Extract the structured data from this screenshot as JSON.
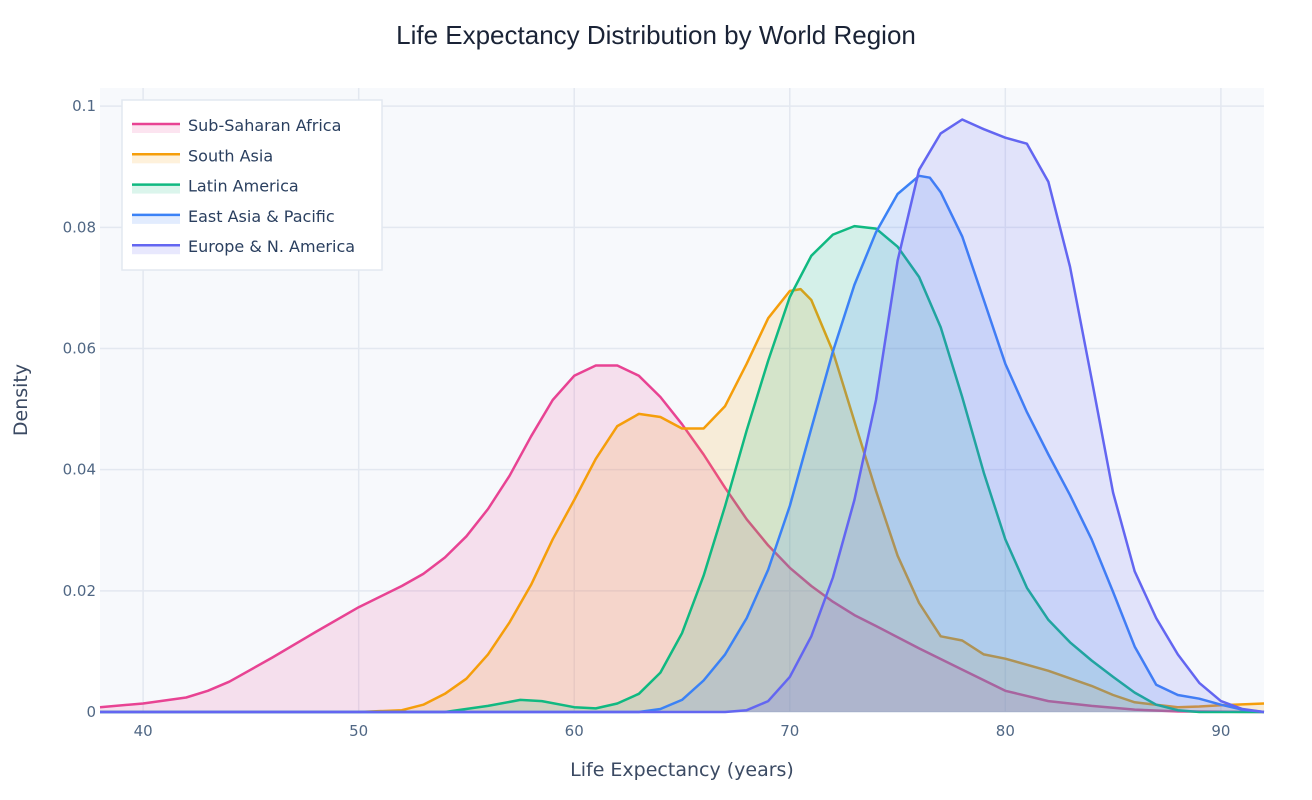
{
  "chart_data": {
    "type": "area",
    "title": "Life Expectancy Distribution by World Region",
    "xlabel": "Life Expectancy (years)",
    "ylabel": "Density",
    "xlim": [
      38,
      92
    ],
    "ylim": [
      0,
      0.103
    ],
    "xticks": [
      40,
      50,
      60,
      70,
      80,
      90
    ],
    "xtick_labels": [
      "40",
      "50",
      "60",
      "70",
      "80",
      "90"
    ],
    "yticks": [
      0,
      0.02,
      0.04,
      0.06,
      0.08,
      0.1
    ],
    "ytick_labels": [
      "0",
      "0.02",
      "0.04",
      "0.06",
      "0.08",
      "0.1"
    ],
    "grid": true,
    "legend_position": "top-left",
    "series": [
      {
        "name": "Sub-Saharan Africa",
        "color": "#e84393",
        "fill": "rgba(236,72,153,0.15)",
        "x": [
          38,
          40,
          42,
          43,
          44,
          46,
          48,
          50,
          52,
          53,
          54,
          55,
          56,
          57,
          58,
          59,
          60,
          61,
          62,
          63,
          64,
          65,
          66,
          67,
          68,
          69,
          70,
          71,
          72,
          73,
          74,
          76,
          78,
          80,
          82,
          84,
          86,
          88,
          92
        ],
        "y": [
          0.0008,
          0.0014,
          0.0024,
          0.0035,
          0.005,
          0.009,
          0.0132,
          0.0173,
          0.0208,
          0.0228,
          0.0255,
          0.029,
          0.0335,
          0.039,
          0.0455,
          0.0515,
          0.0555,
          0.0572,
          0.0572,
          0.0555,
          0.052,
          0.0475,
          0.0425,
          0.037,
          0.0318,
          0.0275,
          0.0238,
          0.0208,
          0.0182,
          0.016,
          0.0142,
          0.0105,
          0.007,
          0.0035,
          0.0018,
          0.001,
          0.0004,
          0.0001,
          0
        ]
      },
      {
        "name": "South Asia",
        "color": "#f59e0b",
        "fill": "rgba(245,158,11,0.15)",
        "x": [
          38,
          50,
          52,
          53,
          54,
          55,
          56,
          57,
          58,
          59,
          60,
          61,
          62,
          63,
          64,
          65,
          66,
          67,
          68,
          69,
          70,
          70.5,
          71,
          72,
          73,
          74,
          75,
          76,
          77,
          78,
          79,
          80,
          82,
          84,
          85,
          86,
          88,
          89,
          90,
          92
        ],
        "y": [
          0,
          0,
          0.0003,
          0.0012,
          0.003,
          0.0055,
          0.0095,
          0.0148,
          0.021,
          0.0285,
          0.035,
          0.0418,
          0.0472,
          0.0492,
          0.0487,
          0.0468,
          0.0468,
          0.0505,
          0.0575,
          0.065,
          0.0695,
          0.0698,
          0.068,
          0.0595,
          0.048,
          0.0365,
          0.0258,
          0.018,
          0.0125,
          0.0118,
          0.0095,
          0.0088,
          0.0068,
          0.0043,
          0.0028,
          0.0016,
          0.0008,
          0.0009,
          0.0011,
          0.0014
        ]
      },
      {
        "name": "Latin America",
        "color": "#10b981",
        "fill": "rgba(16,185,129,0.15)",
        "x": [
          38,
          54,
          56,
          57.5,
          58.5,
          60,
          61,
          62,
          63,
          64,
          65,
          66,
          67,
          68,
          69,
          70,
          71,
          72,
          73,
          74,
          75,
          76,
          77,
          78,
          79,
          80,
          81,
          82,
          83,
          84,
          85,
          86,
          87,
          88,
          89,
          92
        ],
        "y": [
          0,
          0,
          0.001,
          0.002,
          0.0018,
          0.0008,
          0.0006,
          0.0014,
          0.003,
          0.0065,
          0.013,
          0.0225,
          0.034,
          0.0465,
          0.058,
          0.0685,
          0.0753,
          0.0788,
          0.0802,
          0.0798,
          0.0768,
          0.0718,
          0.0635,
          0.052,
          0.0395,
          0.0285,
          0.0205,
          0.0152,
          0.0115,
          0.0085,
          0.0058,
          0.0032,
          0.0012,
          0.0003,
          0,
          0
        ]
      },
      {
        "name": "East Asia & Pacific",
        "color": "#3b82f6",
        "fill": "rgba(59,130,246,0.15)",
        "x": [
          38,
          63,
          64,
          65,
          66,
          67,
          68,
          69,
          70,
          71,
          72,
          73,
          74,
          75,
          76,
          76.5,
          77,
          78,
          79,
          80,
          81,
          82,
          83,
          84,
          85,
          86,
          87,
          88,
          89,
          90,
          91,
          92
        ],
        "y": [
          0,
          0,
          0.0005,
          0.002,
          0.0052,
          0.0095,
          0.0155,
          0.0235,
          0.034,
          0.0468,
          0.0595,
          0.0705,
          0.0792,
          0.0855,
          0.0885,
          0.0882,
          0.0858,
          0.0785,
          0.068,
          0.0575,
          0.0495,
          0.0425,
          0.0358,
          0.0285,
          0.0198,
          0.0108,
          0.0045,
          0.0028,
          0.0022,
          0.0012,
          0.0004,
          0
        ]
      },
      {
        "name": "Europe & N. America",
        "color": "#6366f1",
        "fill": "rgba(99,102,241,0.15)",
        "x": [
          38,
          67,
          68,
          69,
          70,
          71,
          72,
          73,
          74,
          75,
          76,
          77,
          78,
          79,
          80,
          81,
          82,
          83,
          84,
          85,
          86,
          87,
          88,
          89,
          90,
          91,
          92
        ],
        "y": [
          0,
          0,
          0.0003,
          0.0018,
          0.0058,
          0.0125,
          0.0222,
          0.035,
          0.0515,
          0.0745,
          0.0895,
          0.0955,
          0.0978,
          0.0962,
          0.0948,
          0.0938,
          0.0875,
          0.0735,
          0.055,
          0.0362,
          0.0232,
          0.0155,
          0.0095,
          0.0048,
          0.0018,
          0.0005,
          0
        ]
      }
    ]
  }
}
